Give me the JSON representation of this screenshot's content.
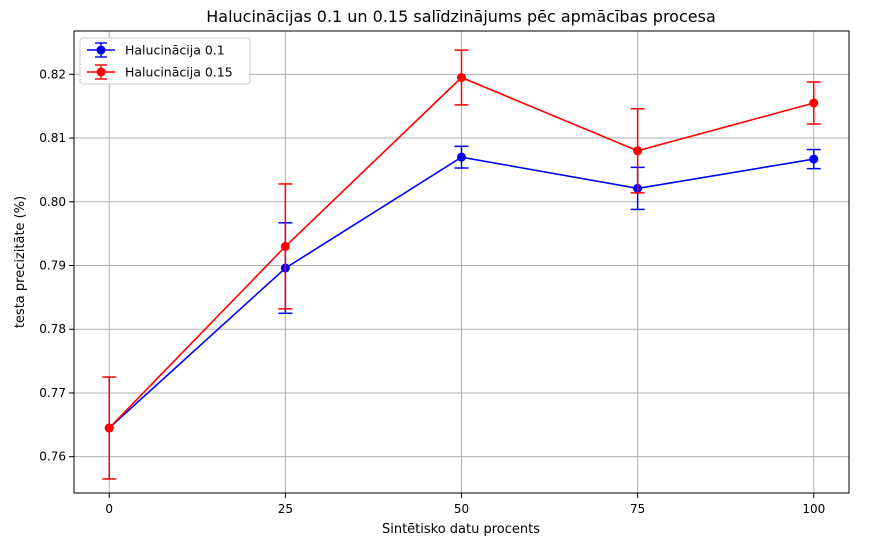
{
  "chart_data": {
    "type": "line",
    "title": "Halucinācijas 0.1 un 0.15 salīdzinājums pēc apmācības procesa",
    "xlabel": "Sintētisko datu procents",
    "ylabel": "testa precizitāte (%)",
    "x": [
      0,
      25,
      50,
      75,
      100
    ],
    "x_ticks": [
      "0",
      "25",
      "50",
      "75",
      "100"
    ],
    "y_ticks": [
      "0.76",
      "0.77",
      "0.78",
      "0.79",
      "0.80",
      "0.81",
      "0.82"
    ],
    "xlim": [
      -5,
      105
    ],
    "ylim": [
      0.7543,
      0.8268
    ],
    "grid": true,
    "legend_position": "top-left",
    "series": [
      {
        "name": "Halucinācija 0.1",
        "color": "#0000ff",
        "values": [
          0.7645,
          0.7896,
          0.807,
          0.8021,
          0.8067
        ],
        "error": [
          0.0,
          0.0071,
          0.0017,
          0.0033,
          0.0015
        ]
      },
      {
        "name": "Halucinācija 0.15",
        "color": "#ff0000",
        "values": [
          0.7645,
          0.793,
          0.8195,
          0.808,
          0.8155
        ],
        "error": [
          0.008,
          0.0098,
          0.0043,
          0.0066,
          0.0033
        ]
      }
    ]
  }
}
